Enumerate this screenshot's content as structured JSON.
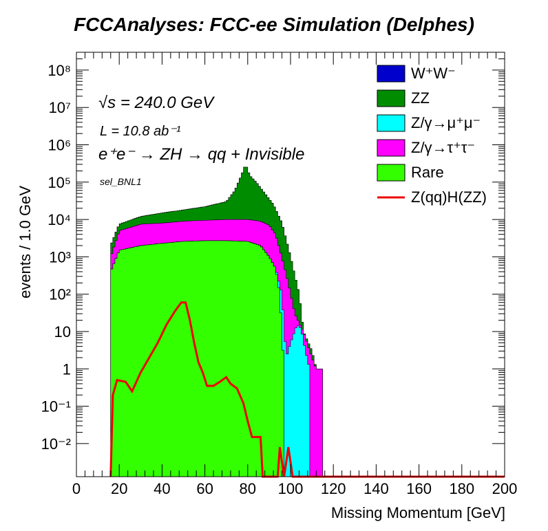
{
  "title": "FCCAnalyses: FCC-ee Simulation (Delphes)",
  "annotations": {
    "sqrt_s": "√s = 240.0 GeV",
    "lumi": "L = 10.8 ab⁻¹",
    "process": "e⁺e⁻ → ZH → qq + Invisible",
    "selection": "sel_BNL1"
  },
  "chart_data": {
    "type": "area",
    "stacked": true,
    "log_y": true,
    "xlabel": "Missing Momentum [GeV]",
    "ylabel": "events / 1.0 GeV",
    "xlim": [
      0,
      200
    ],
    "ylim": [
      0.0013,
      300000000
    ],
    "x_ticks": [
      0,
      20,
      40,
      60,
      80,
      100,
      120,
      140,
      160,
      180,
      200
    ],
    "y_ticks": [
      {
        "value": 0.01,
        "label": "10⁻²"
      },
      {
        "value": 0.1,
        "label": "10⁻¹"
      },
      {
        "value": 1,
        "label": "1"
      },
      {
        "value": 10,
        "label": "10"
      },
      {
        "value": 100,
        "label": "10²"
      },
      {
        "value": 1000,
        "label": "10³"
      },
      {
        "value": 10000,
        "label": "10⁴"
      },
      {
        "value": 100000,
        "label": "10⁵"
      },
      {
        "value": 1000000,
        "label": "10⁶"
      },
      {
        "value": 10000000,
        "label": "10⁷"
      },
      {
        "value": 100000000,
        "label": "10⁸"
      }
    ],
    "legend_position": "top-right",
    "stack_cumulative_points": [
      {
        "name": "W⁺W⁻",
        "color": "#0000cc",
        "points": [
          [
            16,
            2000
          ],
          [
            20,
            7500
          ],
          [
            30,
            12000
          ],
          [
            40,
            15000
          ],
          [
            50,
            18000
          ],
          [
            60,
            22000
          ],
          [
            70,
            30000
          ],
          [
            75,
            40000
          ],
          [
            80,
            55000
          ],
          [
            84,
            70000
          ],
          [
            88,
            50000
          ],
          [
            92,
            25000
          ],
          [
            96,
            8000
          ],
          [
            100,
            1000
          ],
          [
            104,
            100
          ],
          [
            106,
            10
          ],
          [
            110,
            3
          ],
          [
            112,
            1
          ],
          [
            115,
            1
          ]
        ]
      },
      {
        "name": "ZZ",
        "color": "#008c00",
        "points": [
          [
            16,
            2000
          ],
          [
            20,
            7500
          ],
          [
            30,
            12000
          ],
          [
            40,
            15000
          ],
          [
            50,
            18000
          ],
          [
            60,
            22000
          ],
          [
            70,
            30000
          ],
          [
            74,
            60000
          ],
          [
            77,
            150000
          ],
          [
            79,
            300000
          ],
          [
            81,
            150000
          ],
          [
            84,
            100000
          ],
          [
            88,
            50000
          ],
          [
            92,
            25000
          ],
          [
            96,
            8000
          ],
          [
            100,
            1000
          ],
          [
            104,
            100
          ],
          [
            106,
            10
          ],
          [
            110,
            3
          ],
          [
            112,
            1
          ],
          [
            115,
            1
          ]
        ]
      },
      {
        "name": "Z/γ→τ⁺τ⁻",
        "color": "#ff00ff",
        "points": [
          [
            16,
            1000
          ],
          [
            20,
            5000
          ],
          [
            30,
            7500
          ],
          [
            40,
            8000
          ],
          [
            50,
            9000
          ],
          [
            60,
            9500
          ],
          [
            70,
            10000
          ],
          [
            80,
            10000
          ],
          [
            86,
            9000
          ],
          [
            90,
            7000
          ],
          [
            93,
            4000
          ],
          [
            96,
            1000
          ],
          [
            99,
            200
          ],
          [
            102,
            30
          ],
          [
            106,
            10
          ],
          [
            109,
            3
          ],
          [
            112,
            1
          ],
          [
            115,
            1
          ]
        ]
      },
      {
        "name": "Z/γ→μ⁺μ⁻",
        "color": "#00ffff",
        "points": [
          [
            16,
            400
          ],
          [
            20,
            1500
          ],
          [
            30,
            2000
          ],
          [
            40,
            2300
          ],
          [
            50,
            2600
          ],
          [
            60,
            2700
          ],
          [
            70,
            2700
          ],
          [
            80,
            2600
          ],
          [
            86,
            2000
          ],
          [
            90,
            1000
          ],
          [
            93,
            500
          ],
          [
            96,
            100
          ],
          [
            98,
            2
          ],
          [
            100,
            5
          ],
          [
            103,
            15
          ],
          [
            105,
            12
          ],
          [
            107,
            3
          ],
          [
            109,
            1
          ]
        ]
      },
      {
        "name": "Rare",
        "color": "#33ff00",
        "points": [
          [
            16,
            400
          ],
          [
            20,
            1500
          ],
          [
            30,
            2000
          ],
          [
            40,
            2300
          ],
          [
            50,
            2600
          ],
          [
            60,
            2700
          ],
          [
            70,
            2700
          ],
          [
            80,
            2600
          ],
          [
            86,
            2000
          ],
          [
            90,
            1000
          ],
          [
            93,
            500
          ],
          [
            95,
            100
          ],
          [
            97,
            1
          ]
        ]
      }
    ],
    "signal_line": {
      "name": "Z(qq)H(ZZ)",
      "color": "#ee0000",
      "points": [
        [
          16,
          0.0013
        ],
        [
          17,
          0.2
        ],
        [
          19,
          0.5
        ],
        [
          23,
          0.45
        ],
        [
          26,
          0.25
        ],
        [
          30,
          0.8
        ],
        [
          34,
          2
        ],
        [
          38,
          5
        ],
        [
          42,
          15
        ],
        [
          46,
          35
        ],
        [
          49,
          60
        ],
        [
          51,
          60
        ],
        [
          53,
          20
        ],
        [
          55,
          5
        ],
        [
          57,
          1.5
        ],
        [
          59,
          0.8
        ],
        [
          61,
          0.35
        ],
        [
          64,
          0.35
        ],
        [
          67,
          0.45
        ],
        [
          70,
          0.6
        ],
        [
          72,
          0.4
        ],
        [
          75,
          0.3
        ],
        [
          78,
          0.12
        ],
        [
          80,
          0.04
        ],
        [
          82,
          0.015
        ],
        [
          86,
          0.015
        ],
        [
          87,
          0.0013
        ],
        [
          94,
          0.0013
        ],
        [
          95,
          0.008
        ],
        [
          97,
          0.0013
        ],
        [
          99,
          0.008
        ],
        [
          101,
          0.0013
        ],
        [
          200,
          0.0013
        ]
      ]
    }
  }
}
